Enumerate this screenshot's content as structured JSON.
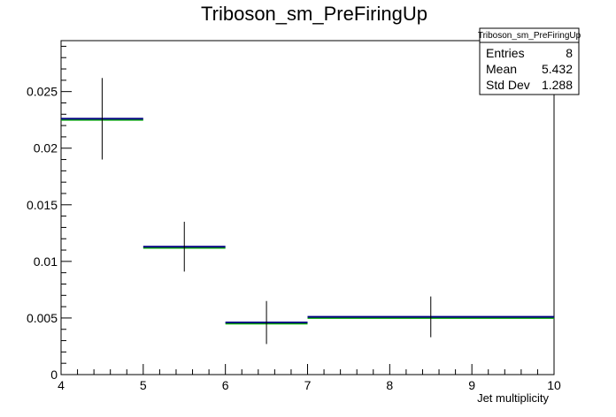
{
  "chart_data": {
    "type": "histogram",
    "title": "Triboson_sm_PreFiringUp",
    "xlabel": "Jet multiplicity",
    "ylabel": "",
    "xlim": [
      4,
      10
    ],
    "ylim": [
      0,
      0.0295
    ],
    "x_ticks": [
      "4",
      "5",
      "6",
      "7",
      "8",
      "9",
      "10"
    ],
    "y_ticks": [
      "0",
      "0.005",
      "0.01",
      "0.015",
      "0.02",
      "0.025"
    ],
    "bins": [
      {
        "x_low": 4,
        "x_high": 5,
        "value": 0.0226,
        "err": 0.0036
      },
      {
        "x_low": 5,
        "x_high": 6,
        "value": 0.0113,
        "err": 0.0022
      },
      {
        "x_low": 6,
        "x_high": 7,
        "value": 0.0046,
        "err": 0.0019
      },
      {
        "x_low": 7,
        "x_high": 10,
        "value": 0.0051,
        "err": 0.0018
      }
    ],
    "colors": {
      "primary": "#000080",
      "secondary": "#00aa00",
      "marker": "#000000"
    },
    "stats": {
      "name": "Triboson_sm_PreFiringUp",
      "rows": [
        {
          "label": "Entries",
          "value": "8"
        },
        {
          "label": "Mean",
          "value": "5.432"
        },
        {
          "label": "Std Dev",
          "value": "1.288"
        }
      ]
    }
  }
}
